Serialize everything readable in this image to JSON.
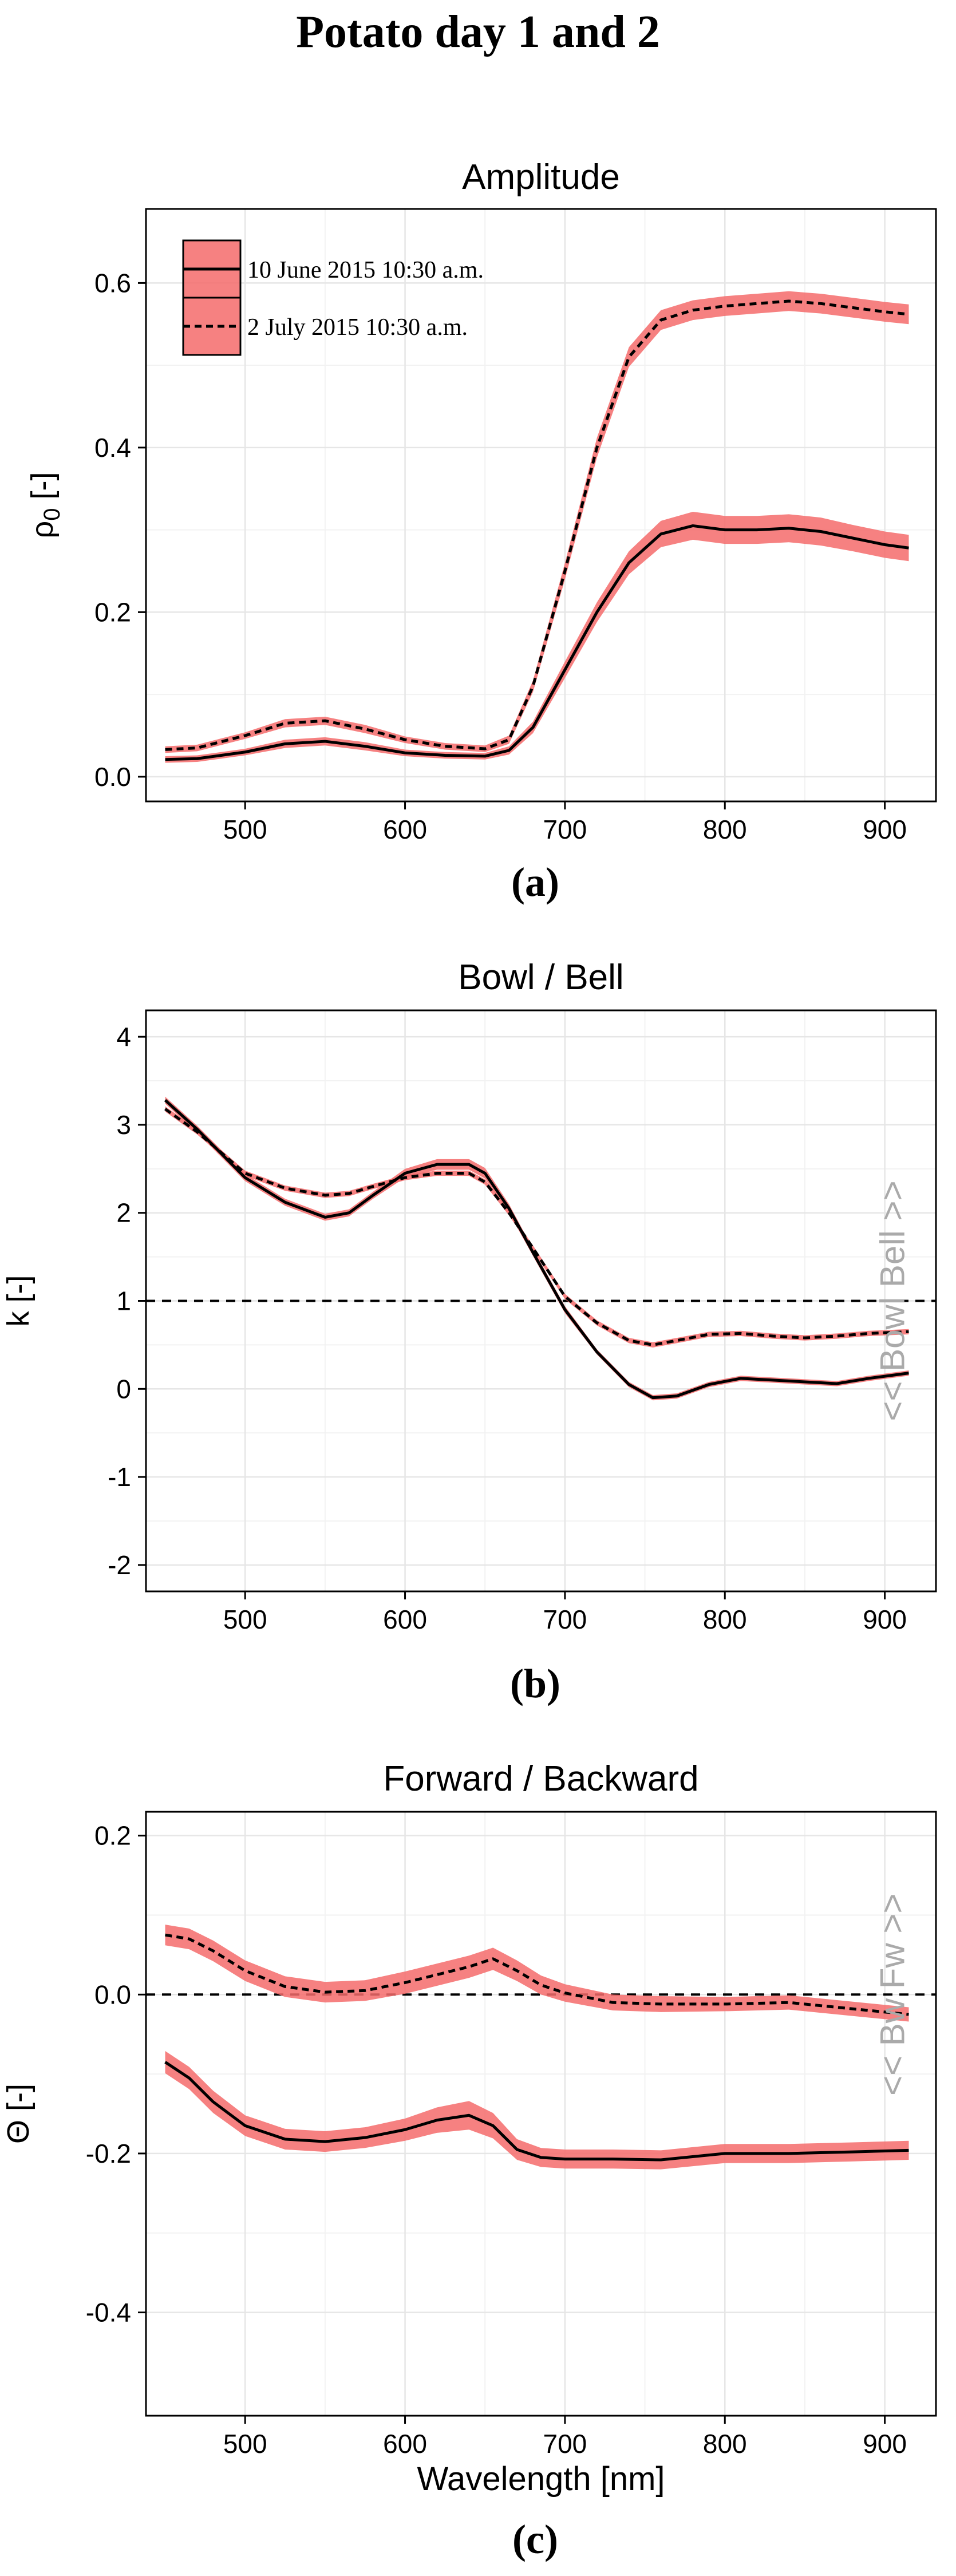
{
  "figure_title": "Potato day 1 and 2",
  "colors": {
    "band": "#f56b6b",
    "band_opacity": 0.85,
    "line": "#000000",
    "grid_major": "#e6e6e6",
    "grid_minor": "#f2f2f2",
    "annotation": "#aaaaaa"
  },
  "legend": {
    "items": [
      {
        "label": "10 June 2015 10:30 a.m.",
        "line_style": "solid"
      },
      {
        "label": "2 July 2015 10:30 a.m.",
        "line_style": "dashed"
      }
    ]
  },
  "chart_data": [
    {
      "type": "line",
      "panel_label": "(a)",
      "title": "Amplitude",
      "xlabel": "",
      "ylabel_main": "ρ",
      "ylabel_sub": "0",
      "ylabel_tail": " [-]",
      "xlim": [
        438,
        932
      ],
      "ylim": [
        -0.03,
        0.69
      ],
      "xticks": [
        500,
        600,
        700,
        800,
        900
      ],
      "xtick_labels": [
        "500",
        "600",
        "700",
        "800",
        "900"
      ],
      "yticks": [
        0.0,
        0.2,
        0.4,
        0.6
      ],
      "ytick_labels": [
        "0.0",
        "0.2",
        "0.4",
        "0.6"
      ],
      "reference_line": null,
      "annotations": [],
      "series": [
        {
          "name": "10 June 2015 10:30 a.m.",
          "style": "solid",
          "x": [
            450,
            470,
            500,
            525,
            550,
            575,
            600,
            625,
            650,
            665,
            680,
            700,
            720,
            740,
            760,
            780,
            800,
            820,
            840,
            860,
            880,
            900,
            915
          ],
          "y": [
            0.021,
            0.022,
            0.03,
            0.04,
            0.043,
            0.037,
            0.029,
            0.026,
            0.025,
            0.032,
            0.06,
            0.13,
            0.2,
            0.26,
            0.295,
            0.305,
            0.3,
            0.3,
            0.302,
            0.298,
            0.29,
            0.282,
            0.278
          ],
          "band": [
            0.004,
            0.004,
            0.004,
            0.005,
            0.005,
            0.005,
            0.004,
            0.004,
            0.004,
            0.005,
            0.007,
            0.01,
            0.012,
            0.014,
            0.016,
            0.017,
            0.017,
            0.017,
            0.017,
            0.017,
            0.016,
            0.016,
            0.016
          ]
        },
        {
          "name": "2 July 2015 10:30 a.m.",
          "style": "dashed",
          "x": [
            450,
            470,
            500,
            525,
            550,
            575,
            600,
            625,
            650,
            665,
            680,
            700,
            720,
            740,
            760,
            780,
            800,
            820,
            840,
            860,
            880,
            900,
            915
          ],
          "y": [
            0.033,
            0.035,
            0.05,
            0.065,
            0.068,
            0.058,
            0.045,
            0.037,
            0.034,
            0.045,
            0.11,
            0.25,
            0.4,
            0.51,
            0.555,
            0.567,
            0.572,
            0.575,
            0.578,
            0.575,
            0.57,
            0.565,
            0.562
          ],
          "band": [
            0.004,
            0.004,
            0.004,
            0.005,
            0.005,
            0.005,
            0.004,
            0.004,
            0.004,
            0.005,
            0.007,
            0.01,
            0.012,
            0.012,
            0.012,
            0.012,
            0.012,
            0.012,
            0.012,
            0.012,
            0.012,
            0.012,
            0.012
          ]
        }
      ]
    },
    {
      "type": "line",
      "panel_label": "(b)",
      "title": "Bowl / Bell",
      "xlabel": "",
      "ylabel_main": "k [-]",
      "ylabel_sub": "",
      "ylabel_tail": "",
      "xlim": [
        438,
        932
      ],
      "ylim": [
        -2.3,
        4.3
      ],
      "xticks": [
        500,
        600,
        700,
        800,
        900
      ],
      "xtick_labels": [
        "500",
        "600",
        "700",
        "800",
        "900"
      ],
      "yticks": [
        -2,
        -1,
        0,
        1,
        2,
        3,
        4
      ],
      "ytick_labels": [
        "-2",
        "-1",
        "0",
        "1",
        "2",
        "3",
        "4"
      ],
      "reference_line": 1,
      "annotations": [
        {
          "text": "<<  Bowl  Bell  >>",
          "x": 905,
          "y": 1.0
        }
      ],
      "series": [
        {
          "name": "10 June 2015 10:30 a.m.",
          "style": "solid",
          "x": [
            450,
            470,
            500,
            525,
            550,
            565,
            580,
            600,
            620,
            640,
            650,
            665,
            680,
            700,
            720,
            740,
            755,
            770,
            790,
            810,
            830,
            850,
            870,
            890,
            915
          ],
          "y": [
            3.28,
            2.95,
            2.4,
            2.12,
            1.95,
            2.0,
            2.2,
            2.45,
            2.55,
            2.55,
            2.45,
            2.05,
            1.55,
            0.9,
            0.42,
            0.05,
            -0.1,
            -0.08,
            0.05,
            0.12,
            0.1,
            0.08,
            0.06,
            0.12,
            0.18
          ],
          "band": [
            0.04,
            0.04,
            0.04,
            0.04,
            0.04,
            0.04,
            0.04,
            0.05,
            0.06,
            0.06,
            0.06,
            0.05,
            0.04,
            0.04,
            0.03,
            0.03,
            0.03,
            0.03,
            0.03,
            0.03,
            0.03,
            0.03,
            0.03,
            0.03,
            0.03
          ]
        },
        {
          "name": "2 July 2015 10:30 a.m.",
          "style": "dashed",
          "x": [
            450,
            470,
            500,
            525,
            550,
            565,
            580,
            600,
            620,
            640,
            650,
            665,
            680,
            700,
            720,
            740,
            755,
            770,
            790,
            810,
            830,
            850,
            870,
            890,
            915
          ],
          "y": [
            3.18,
            2.92,
            2.45,
            2.28,
            2.2,
            2.22,
            2.3,
            2.4,
            2.45,
            2.45,
            2.35,
            2.0,
            1.6,
            1.05,
            0.75,
            0.55,
            0.5,
            0.55,
            0.62,
            0.63,
            0.6,
            0.58,
            0.6,
            0.63,
            0.65
          ],
          "band": [
            0.03,
            0.03,
            0.03,
            0.03,
            0.03,
            0.03,
            0.03,
            0.03,
            0.03,
            0.03,
            0.03,
            0.03,
            0.03,
            0.03,
            0.03,
            0.03,
            0.03,
            0.03,
            0.03,
            0.03,
            0.03,
            0.03,
            0.03,
            0.03,
            0.03
          ]
        }
      ]
    },
    {
      "type": "line",
      "panel_label": "(c)",
      "title": "Forward / Backward",
      "xlabel": "Wavelength [nm]",
      "ylabel_main": "Θ [-]",
      "ylabel_sub": "",
      "ylabel_tail": "",
      "xlim": [
        438,
        932
      ],
      "ylim": [
        -0.53,
        0.23
      ],
      "xticks": [
        500,
        600,
        700,
        800,
        900
      ],
      "xtick_labels": [
        "500",
        "600",
        "700",
        "800",
        "900"
      ],
      "yticks": [
        -0.4,
        -0.2,
        0.0,
        0.2
      ],
      "ytick_labels": [
        "-0.4",
        "-0.2",
        "0.0",
        "0.2"
      ],
      "reference_line": 0,
      "annotations": [
        {
          "text": "<<  Bw  Fw  >>",
          "x": 905,
          "y": 0.0
        }
      ],
      "series": [
        {
          "name": "10 June 2015 10:30 a.m.",
          "style": "solid",
          "x": [
            450,
            465,
            480,
            500,
            525,
            550,
            575,
            600,
            620,
            640,
            655,
            670,
            685,
            700,
            730,
            760,
            800,
            840,
            880,
            915
          ],
          "y": [
            -0.085,
            -0.105,
            -0.135,
            -0.165,
            -0.182,
            -0.185,
            -0.18,
            -0.17,
            -0.158,
            -0.152,
            -0.165,
            -0.195,
            -0.205,
            -0.207,
            -0.207,
            -0.208,
            -0.2,
            -0.2,
            -0.198,
            -0.196
          ],
          "band": [
            0.014,
            0.014,
            0.014,
            0.013,
            0.013,
            0.013,
            0.013,
            0.014,
            0.016,
            0.018,
            0.016,
            0.013,
            0.012,
            0.012,
            0.012,
            0.012,
            0.012,
            0.012,
            0.012,
            0.012
          ]
        },
        {
          "name": "2 July 2015 10:30 a.m.",
          "style": "dashed",
          "x": [
            450,
            465,
            480,
            500,
            525,
            550,
            575,
            600,
            620,
            640,
            655,
            670,
            685,
            700,
            730,
            760,
            800,
            840,
            880,
            915
          ],
          "y": [
            0.075,
            0.07,
            0.055,
            0.03,
            0.01,
            0.003,
            0.005,
            0.015,
            0.025,
            0.035,
            0.045,
            0.03,
            0.012,
            0.002,
            -0.01,
            -0.012,
            -0.012,
            -0.01,
            -0.018,
            -0.025
          ],
          "band": [
            0.013,
            0.013,
            0.013,
            0.013,
            0.013,
            0.013,
            0.013,
            0.014,
            0.014,
            0.014,
            0.014,
            0.013,
            0.012,
            0.011,
            0.01,
            0.01,
            0.009,
            0.009,
            0.009,
            0.009
          ]
        }
      ]
    }
  ]
}
